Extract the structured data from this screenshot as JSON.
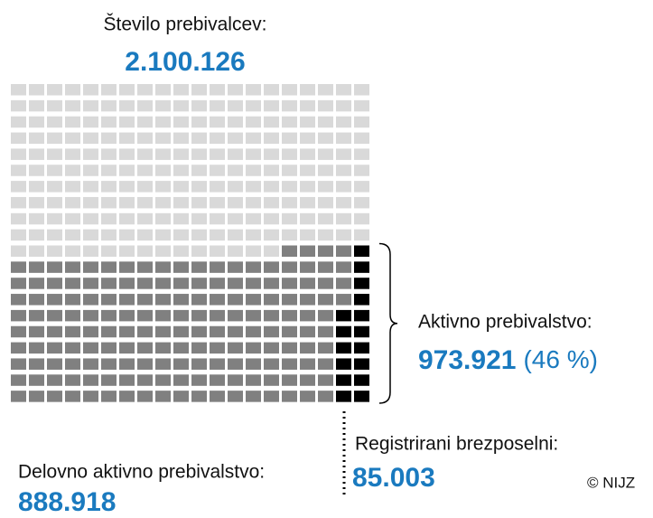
{
  "chart_data": {
    "type": "waffle",
    "total": {
      "name": "Število prebivalcev:",
      "value": 2100126,
      "value_label": "2.100.126",
      "color": "#d9d9d9"
    },
    "active": {
      "name": "Aktivno prebivalstvo:",
      "value": 973921,
      "value_label": "973.921",
      "percent": 46,
      "percent_label": "(46 %)"
    },
    "series": [
      {
        "name": "Delovno aktivno prebivalstvo:",
        "value": 888918,
        "value_label": "888.918",
        "color": "#808080"
      },
      {
        "name": "Registrirani brezposelni:",
        "value": 85003,
        "value_label": "85.003",
        "color": "#000000"
      }
    ],
    "source": "© NIJZ"
  }
}
